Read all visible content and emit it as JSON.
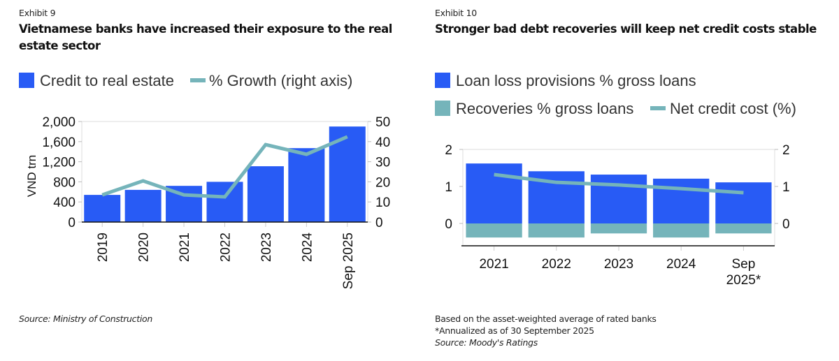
{
  "colors": {
    "bar_blue": "#285BF5",
    "teal": "#75B4BA",
    "gridline": "#dddddd",
    "axis": "#111111"
  },
  "exhibits": [
    {
      "label": "Exhibit 9",
      "title": "Vietnamese banks have increased their exposure to the real estate sector",
      "notes": [
        {
          "text": "Source: Ministry of Construction",
          "italic": true
        }
      ]
    },
    {
      "label": "Exhibit 10",
      "title": "Stronger bad debt recoveries will keep net credit costs stable",
      "notes": [
        {
          "text": "Based on the asset-weighted average of rated banks",
          "italic": false
        },
        {
          "text": "*Annualized as of 30 September 2025",
          "italic": false
        },
        {
          "text": "Source: Moody's Ratings",
          "italic": true
        }
      ]
    }
  ],
  "chart_data": [
    {
      "type": "bar",
      "title": "Vietnamese banks have increased their exposure to the real estate sector",
      "categories": [
        "2019",
        "2020",
        "2021",
        "2022",
        "2023",
        "2024",
        "Sep 2025"
      ],
      "series": [
        {
          "name": "Credit to real estate",
          "type": "bar",
          "axis": "left",
          "values": [
            540,
            640,
            720,
            800,
            1110,
            1470,
            1900
          ]
        },
        {
          "name": "% Growth (right axis)",
          "type": "line",
          "axis": "right",
          "values": [
            13.5,
            20.5,
            13.5,
            12.5,
            38.5,
            33.7,
            42.4
          ]
        }
      ],
      "ylabel": "VND trn",
      "ylabel_right": "",
      "xlabel": "",
      "ylim": [
        0,
        2000
      ],
      "ylim_right": [
        0,
        50
      ],
      "yticks": [
        "0",
        "400",
        "800",
        "1,200",
        "1,600",
        "2,000"
      ],
      "yticks_right": [
        "0",
        "10",
        "20",
        "30",
        "40",
        "50"
      ],
      "legend": [
        "Credit to real estate",
        "% Growth (right axis)"
      ],
      "legend_position": "top",
      "grid": false
    },
    {
      "type": "bar",
      "title": "Stronger bad debt recoveries will keep net credit costs stable",
      "categories": [
        "2021",
        "2022",
        "2023",
        "2024",
        "Sep 2025*"
      ],
      "category_lines": [
        [
          "2021"
        ],
        [
          "2022"
        ],
        [
          "2023"
        ],
        [
          "2024"
        ],
        [
          "Sep",
          "2025*"
        ]
      ],
      "series": [
        {
          "name": "Loan loss provisions % gross loans",
          "type": "bar",
          "axis": "left",
          "values": [
            1.62,
            1.41,
            1.32,
            1.21,
            1.11
          ]
        },
        {
          "name": "Recoveries % gross loans",
          "type": "bar",
          "axis": "left",
          "values": [
            -0.38,
            -0.38,
            -0.27,
            -0.38,
            -0.27
          ]
        },
        {
          "name": "Net credit cost (%)",
          "type": "line",
          "axis": "left",
          "values": [
            1.32,
            1.11,
            1.04,
            0.94,
            0.83
          ]
        }
      ],
      "xlabel": "",
      "ylabel": "",
      "ylim": [
        -0.6,
        2
      ],
      "yticks": [
        "0",
        "1",
        "2"
      ],
      "yticks_right": [
        "0",
        "1",
        "2"
      ],
      "legend": [
        "Loan loss provisions % gross loans",
        "Recoveries % gross loans",
        "Net credit cost (%)"
      ],
      "legend_position": "top",
      "grid": false
    }
  ]
}
